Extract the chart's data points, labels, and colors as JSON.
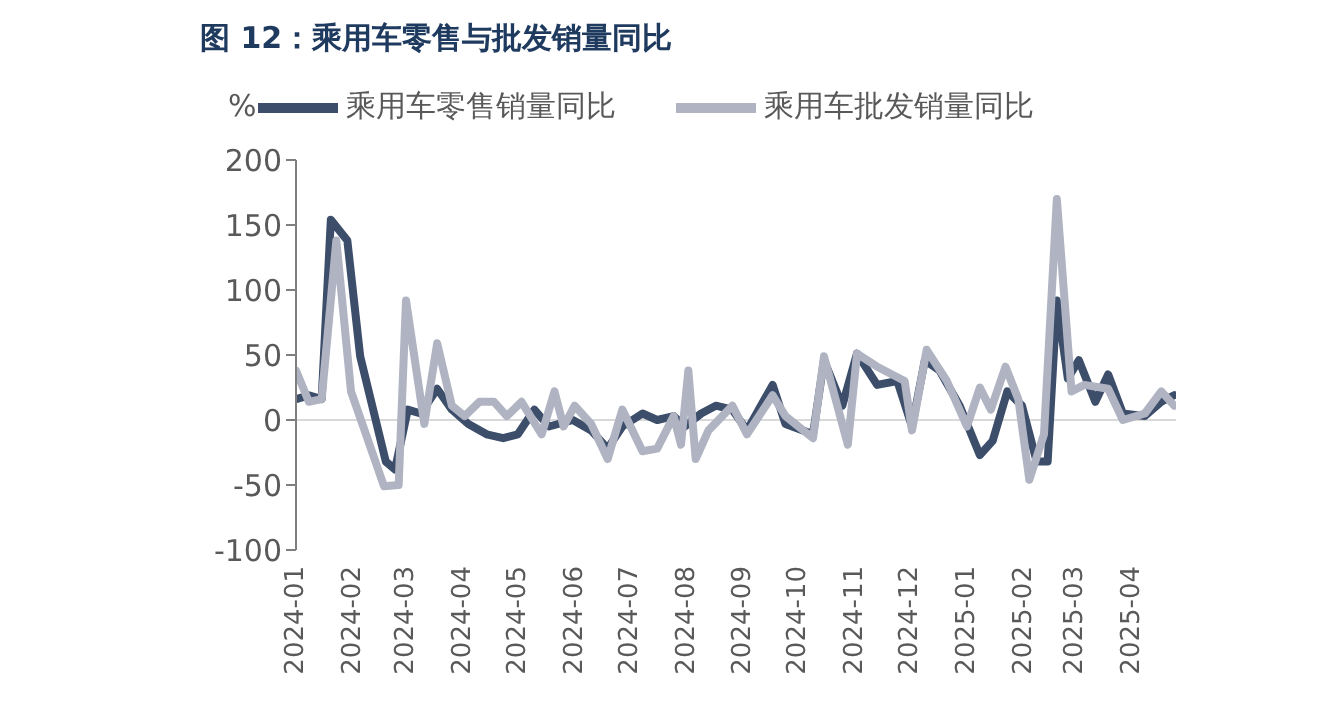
{
  "chart_data": {
    "type": "line",
    "title": "图 12：乘用车零售与批发销量同比",
    "ylabel": "%",
    "legend": "top",
    "marker": "none",
    "line_style": "solid",
    "xlim": [
      "2024-01-01",
      "2025-04-25"
    ],
    "xticks": [
      "2024-01",
      "2024-02",
      "2024-03",
      "2024-04",
      "2024-05",
      "2024-06",
      "2024-07",
      "2024-08",
      "2024-09",
      "2024-10",
      "2024-11",
      "2024-12",
      "2025-01",
      "2025-02",
      "2025-03",
      "2025-04"
    ],
    "ylim": [
      -100,
      200
    ],
    "yticks": [
      -100,
      -50,
      0,
      50,
      100,
      150,
      200
    ],
    "ref_lines": [
      {
        "axis": "y",
        "value": 0,
        "color": "#d9d9d9"
      }
    ],
    "series": [
      {
        "name": "乘用车零售销量同比",
        "color": "#3d4e6b",
        "x": [
          "2024-01-01",
          "2024-01-08",
          "2024-01-15",
          "2024-01-20",
          "2024-01-29",
          "2024-02-05",
          "2024-02-19",
          "2024-02-24",
          "2024-03-02",
          "2024-03-09",
          "2024-03-18",
          "2024-03-26",
          "2024-04-04",
          "2024-04-14",
          "2024-04-23",
          "2024-05-01",
          "2024-05-10",
          "2024-05-18",
          "2024-05-31",
          "2024-06-10",
          "2024-06-19",
          "2024-06-27",
          "2024-07-08",
          "2024-07-16",
          "2024-07-25",
          "2024-07-31",
          "2024-08-09",
          "2024-08-17",
          "2024-08-26",
          "2024-09-03",
          "2024-09-17",
          "2024-09-24",
          "2024-10-09",
          "2024-10-15",
          "2024-10-25",
          "2024-11-02",
          "2024-11-13",
          "2024-11-24",
          "2024-12-02",
          "2024-12-09",
          "2024-12-17",
          "2024-12-28",
          "2025-01-08",
          "2025-01-15",
          "2025-01-23",
          "2025-01-31",
          "2025-02-08",
          "2025-02-14",
          "2025-02-19",
          "2025-02-25",
          "2025-03-03",
          "2025-03-12",
          "2025-03-19",
          "2025-03-27",
          "2025-04-08",
          "2025-04-17",
          "2025-04-24"
        ],
        "values": [
          16,
          19,
          16,
          154,
          138,
          49,
          -32,
          -38,
          8,
          5,
          24,
          8,
          -3,
          -11,
          -14,
          -11,
          8,
          -5,
          0,
          -8,
          -22,
          -5,
          5,
          0,
          3,
          -5,
          5,
          11,
          8,
          -8,
          27,
          -3,
          -11,
          46,
          11,
          51,
          27,
          30,
          -5,
          46,
          38,
          11,
          -27,
          -16,
          22,
          11,
          -32,
          -32,
          92,
          32,
          46,
          14,
          35,
          5,
          3,
          14,
          19
        ]
      },
      {
        "name": "乘用车批发销量同比",
        "color": "#b0b4c2",
        "x": [
          "2024-01-01",
          "2024-01-08",
          "2024-01-15",
          "2024-01-23",
          "2024-01-31",
          "2024-02-18",
          "2024-02-26",
          "2024-03-01",
          "2024-03-11",
          "2024-03-18",
          "2024-03-26",
          "2024-04-02",
          "2024-04-10",
          "2024-04-18",
          "2024-04-25",
          "2024-05-03",
          "2024-05-14",
          "2024-05-21",
          "2024-05-26",
          "2024-06-01",
          "2024-06-10",
          "2024-06-19",
          "2024-06-27",
          "2024-07-08",
          "2024-07-16",
          "2024-07-25",
          "2024-07-29",
          "2024-08-02",
          "2024-08-06",
          "2024-08-13",
          "2024-08-26",
          "2024-09-03",
          "2024-09-17",
          "2024-09-24",
          "2024-10-09",
          "2024-10-15",
          "2024-10-28",
          "2024-11-02",
          "2024-11-13",
          "2024-11-28",
          "2024-12-02",
          "2024-12-10",
          "2024-12-21",
          "2025-01-01",
          "2025-01-08",
          "2025-01-14",
          "2025-01-22",
          "2025-01-29",
          "2025-02-04",
          "2025-02-12",
          "2025-02-19",
          "2025-02-27",
          "2025-03-06",
          "2025-03-19",
          "2025-03-27",
          "2025-04-08",
          "2025-04-17",
          "2025-04-24"
        ],
        "values": [
          38,
          14,
          16,
          138,
          22,
          -51,
          -50,
          92,
          -3,
          59,
          11,
          3,
          14,
          14,
          3,
          14,
          -11,
          22,
          -5,
          11,
          -3,
          -30,
          8,
          -24,
          -22,
          3,
          -19,
          38,
          -30,
          -8,
          11,
          -11,
          19,
          3,
          -14,
          49,
          -19,
          51,
          41,
          30,
          -8,
          54,
          30,
          -5,
          25,
          8,
          41,
          16,
          -46,
          -11,
          170,
          22,
          27,
          24,
          0,
          5,
          22,
          11
        ]
      }
    ]
  }
}
